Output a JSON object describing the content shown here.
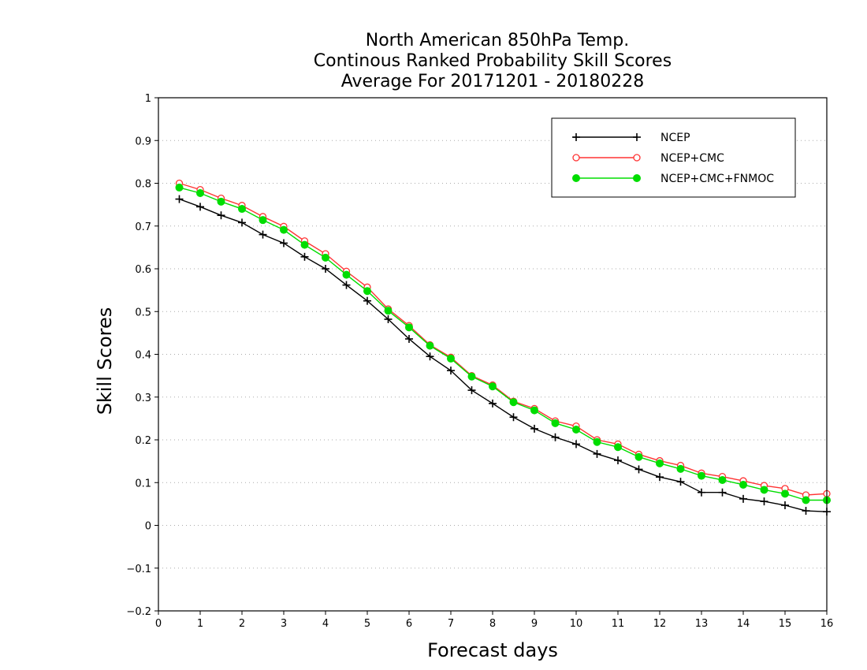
{
  "chart_data": {
    "type": "line",
    "title": [
      "North American 850hPa Temp.",
      "Continous Ranked Probability Skill Scores",
      "Average For 20171201 - 20180228"
    ],
    "xlabel": "Forecast days",
    "ylabel": "Skill Scores",
    "xlim": [
      0,
      16
    ],
    "ylim": [
      -0.2,
      1
    ],
    "xticks": [
      "0",
      "1",
      "2",
      "3",
      "4",
      "5",
      "6",
      "7",
      "8",
      "9",
      "10",
      "11",
      "12",
      "13",
      "14",
      "15",
      "16"
    ],
    "yticks": [
      "−0.2",
      "−0.1",
      "0",
      "0.1",
      "0.2",
      "0.3",
      "0.4",
      "0.5",
      "0.6",
      "0.7",
      "0.8",
      "0.9",
      "1"
    ],
    "grid": "horizontal dotted",
    "legend_position": "top-right",
    "x": [
      0.5,
      1,
      1.5,
      2,
      2.5,
      3,
      3.5,
      4,
      4.5,
      5,
      5.5,
      6,
      6.5,
      7,
      7.5,
      8,
      8.5,
      9,
      9.5,
      10,
      10.5,
      11,
      11.5,
      12,
      12.5,
      13,
      13.5,
      14,
      14.5,
      15,
      15.5,
      16
    ],
    "series": [
      {
        "name": "NCEP",
        "color": "#000000",
        "marker": "plus",
        "values": [
          0.763,
          0.745,
          0.725,
          0.708,
          0.68,
          0.66,
          0.628,
          0.6,
          0.562,
          0.525,
          0.482,
          0.436,
          0.395,
          0.362,
          0.316,
          0.285,
          0.253,
          0.226,
          0.206,
          0.19,
          0.167,
          0.152,
          0.131,
          0.113,
          0.102,
          0.077,
          0.077,
          0.062,
          0.056,
          0.047,
          0.034,
          0.032
        ]
      },
      {
        "name": "NCEP+CMC",
        "color": "#ff3333",
        "marker": "open-circle",
        "values": [
          0.8,
          0.785,
          0.765,
          0.748,
          0.722,
          0.699,
          0.665,
          0.635,
          0.594,
          0.557,
          0.506,
          0.467,
          0.422,
          0.393,
          0.35,
          0.328,
          0.29,
          0.273,
          0.244,
          0.232,
          0.2,
          0.19,
          0.166,
          0.151,
          0.14,
          0.122,
          0.114,
          0.104,
          0.093,
          0.086,
          0.071,
          0.074
        ]
      },
      {
        "name": "NCEP+CMC+FNMOC",
        "color": "#00dd00",
        "marker": "filled-circle",
        "values": [
          0.79,
          0.777,
          0.757,
          0.74,
          0.714,
          0.691,
          0.656,
          0.626,
          0.586,
          0.548,
          0.502,
          0.463,
          0.42,
          0.39,
          0.348,
          0.325,
          0.288,
          0.269,
          0.239,
          0.224,
          0.195,
          0.183,
          0.16,
          0.145,
          0.132,
          0.116,
          0.106,
          0.095,
          0.083,
          0.074,
          0.059,
          0.059
        ]
      }
    ]
  }
}
